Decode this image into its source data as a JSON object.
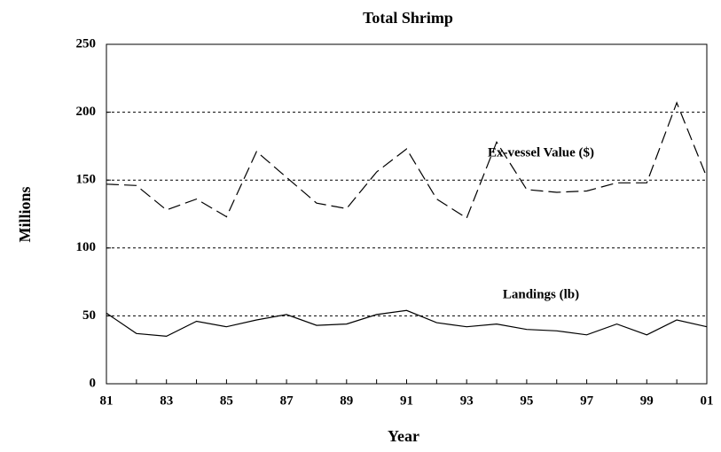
{
  "chart_data": {
    "type": "line",
    "title": "Total Shrimp",
    "xlabel": "Year",
    "ylabel": "Millions",
    "categories": [
      "81",
      null,
      "83",
      null,
      "85",
      null,
      "87",
      null,
      "89",
      null,
      "91",
      null,
      "93",
      null,
      "95",
      null,
      "97",
      null,
      "99",
      null,
      "01"
    ],
    "series": [
      {
        "name": "Ex-vessel Value ($)",
        "color": "#000000",
        "dash": "dashed",
        "values": [
          147,
          146,
          128,
          136,
          123,
          171,
          152,
          133,
          129,
          156,
          173,
          136,
          122,
          178,
          143,
          141,
          142,
          148,
          148,
          207,
          152
        ]
      },
      {
        "name": "Landings (lb)",
        "color": "#000000",
        "dash": "solid",
        "values": [
          52,
          37,
          35,
          46,
          42,
          47,
          51,
          43,
          44,
          51,
          54,
          45,
          42,
          44,
          40,
          39,
          36,
          44,
          36,
          47,
          42
        ]
      }
    ],
    "ylim": [
      0,
      250
    ],
    "yticks": [
      0,
      50,
      100,
      150,
      200,
      250
    ],
    "grid": true
  }
}
